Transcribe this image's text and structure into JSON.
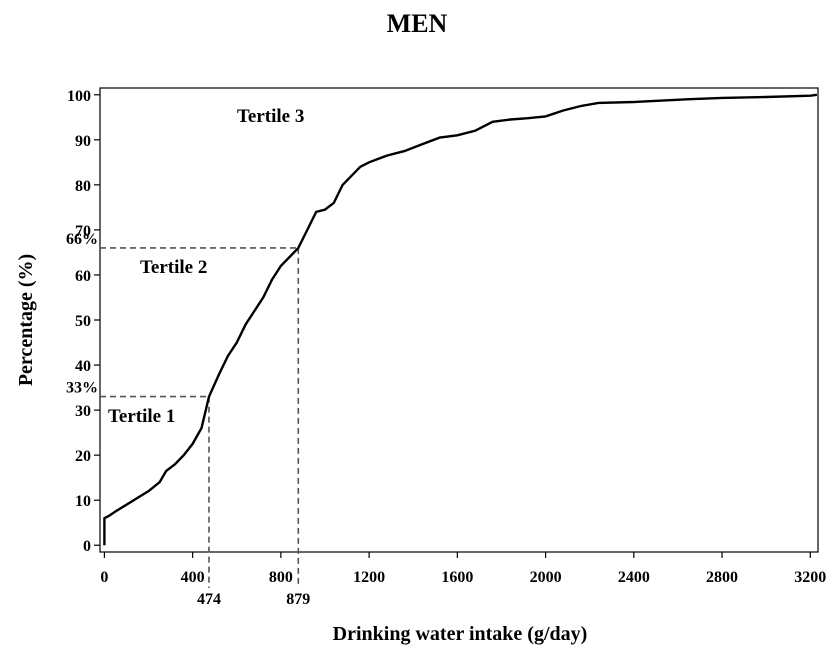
{
  "chart_data": {
    "type": "line",
    "title": "MEN",
    "x_label": "Drinking water intake (g/day)",
    "y_label": "Percentage (%)",
    "annotations": [
      "Tertile 1",
      "Tertile 2",
      "Tertile 3"
    ],
    "cutoffs": [
      {
        "x": 474,
        "y": {
          "value": 33,
          "label": "33%"
        }
      },
      {
        "x": 879,
        "y": {
          "value": 66,
          "label": "66%"
        }
      }
    ],
    "color": "#000000",
    "x": [
      0,
      0,
      20,
      50,
      100,
      150,
      200,
      250,
      280,
      320,
      360,
      400,
      440,
      474,
      520,
      560,
      600,
      640,
      680,
      720,
      760,
      800,
      840,
      879,
      920,
      960,
      1000,
      1040,
      1080,
      1120,
      1160,
      1200,
      1280,
      1360,
      1440,
      1520,
      1600,
      1680,
      1760,
      1840,
      1920,
      2000,
      2080,
      2160,
      2240,
      2400,
      2640,
      2800,
      3000,
      3200,
      3230
    ],
    "values": [
      0,
      6,
      6.5,
      7.5,
      9,
      10.5,
      12,
      14,
      16.5,
      18,
      20,
      22.5,
      26,
      33,
      38,
      42,
      45,
      49,
      52,
      55,
      59,
      62,
      64,
      66,
      70,
      74,
      74.5,
      76,
      80,
      82,
      84,
      85,
      86.5,
      87.5,
      89,
      90.5,
      91,
      92,
      94,
      94.5,
      94.8,
      95.2,
      96.5,
      97.5,
      98.2,
      98.4,
      99,
      99.3,
      99.5,
      99.8,
      100
    ],
    "xlim": [
      -20,
      3235
    ],
    "ylim": [
      -1.5,
      101.5
    ],
    "xticks": [
      0,
      400,
      800,
      1200,
      1600,
      2000,
      2400,
      2800,
      3200
    ],
    "yticks": [
      0,
      10,
      20,
      30,
      40,
      50,
      60,
      70,
      80,
      90,
      100
    ]
  }
}
